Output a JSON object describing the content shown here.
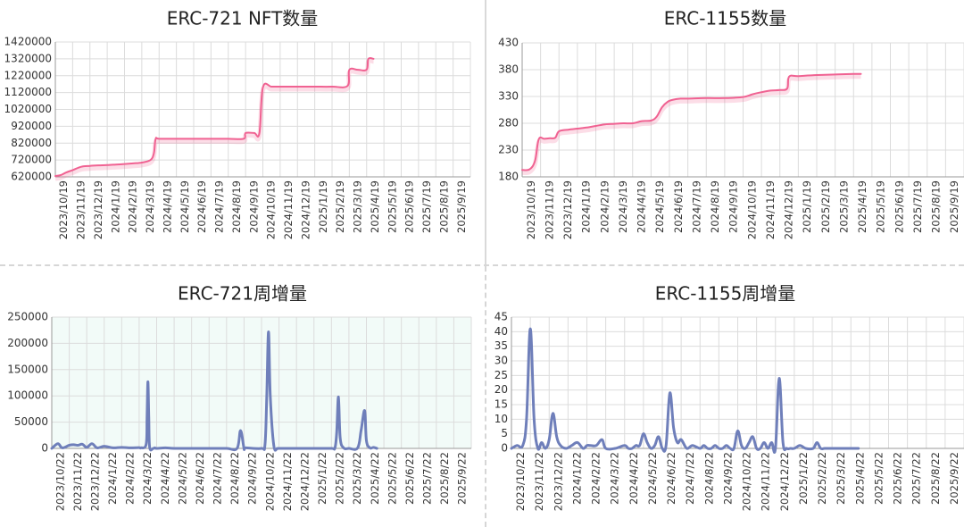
{
  "chart_data": [
    {
      "type": "line",
      "title": "ERC-721 NFT数量",
      "ylim": [
        620000,
        1420000
      ],
      "yticks": [
        "1420000",
        "1320000",
        "1220000",
        "1120000",
        "1020000",
        "920000",
        "820000",
        "720000",
        "620000"
      ],
      "xticks": [
        "2023/10/19",
        "2023/11/19",
        "2023/12/19",
        "2024/1/19",
        "2024/2/19",
        "2024/3/19",
        "2024/4/19",
        "2024/5/19",
        "2024/6/19",
        "2024/7/19",
        "2024/8/19",
        "2024/9/19",
        "2024/10/19",
        "2024/11/19",
        "2024/12/19",
        "2025/1/19",
        "2025/2/19",
        "2025/3/19",
        "2025/4/19",
        "2025/5/19",
        "2025/6/19",
        "2025/7/19",
        "2025/8/19",
        "2025/9/19"
      ],
      "color": "#f06292",
      "background": "#ffffff",
      "grid": true,
      "series": [
        {
          "x": [
            0,
            0.3,
            0.6,
            1.0,
            1.5,
            2.0,
            2.5,
            3.0,
            3.5,
            4.0,
            4.5,
            5.0,
            5.5,
            5.7,
            5.8,
            6,
            7,
            8,
            9,
            10,
            10.9,
            11.0,
            11.5,
            11.8,
            12.0,
            12.5,
            13,
            14,
            15,
            16,
            16.9,
            17.0,
            17.5,
            18.0,
            18.1,
            18.4
          ],
          "y": [
            625000,
            630000,
            645000,
            660000,
            680000,
            685000,
            688000,
            690000,
            693000,
            696000,
            700000,
            705000,
            720000,
            760000,
            845000,
            846000,
            846000,
            846000,
            846000,
            846000,
            846000,
            880000,
            880000,
            880000,
            1150000,
            1155000,
            1155000,
            1155000,
            1155000,
            1155000,
            1160000,
            1255000,
            1255000,
            1256000,
            1320000,
            1320000
          ]
        }
      ]
    },
    {
      "type": "line",
      "title": "ERC-1155数量",
      "ylim": [
        180,
        430
      ],
      "yticks": [
        "430",
        "380",
        "330",
        "280",
        "230",
        "180"
      ],
      "xticks": [
        "2023/10/19",
        "2023/11/19",
        "2023/12/19",
        "2024/1/19",
        "2024/2/19",
        "2024/3/19",
        "2024/4/19",
        "2024/5/19",
        "2024/6/19",
        "2024/7/19",
        "2024/8/19",
        "2024/9/19",
        "2024/10/19",
        "2024/11/19",
        "2024/12/19",
        "2025/1/19",
        "2025/2/19",
        "2025/3/19",
        "2025/4/19",
        "2025/5/19",
        "2025/6/19",
        "2025/7/19",
        "2025/8/19",
        "2025/9/19"
      ],
      "color": "#f06292",
      "background": "#ffffff",
      "grid": true,
      "series": [
        {
          "x": [
            0,
            0.4,
            0.7,
            0.9,
            1.2,
            1.5,
            1.8,
            2.0,
            2.5,
            3,
            3.5,
            4,
            4.5,
            5,
            5.5,
            6,
            6.5,
            7.0,
            7.3,
            7.6,
            7.9,
            8.2,
            8.6,
            9,
            10,
            11,
            12,
            12.5,
            13,
            13.5,
            14,
            14.4,
            14.5,
            15,
            16,
            17,
            18,
            18.4
          ],
          "y": [
            193,
            194,
            210,
            250,
            251,
            252,
            253,
            265,
            268,
            270,
            272,
            275,
            278,
            279,
            280,
            280,
            284,
            285,
            292,
            310,
            320,
            324,
            326,
            326,
            327,
            327,
            329,
            334,
            338,
            341,
            342,
            345,
            367,
            368,
            370,
            371,
            372,
            372
          ]
        }
      ]
    },
    {
      "type": "line",
      "title": "ERC-721周增量",
      "ylim": [
        0,
        250000
      ],
      "yticks": [
        "250000",
        "200000",
        "150000",
        "100000",
        "50000",
        "0"
      ],
      "xticks": [
        "2023/10/22",
        "2023/11/22",
        "2023/12/22",
        "2024/1/22",
        "2024/2/22",
        "2024/3/22",
        "2024/4/22",
        "2024/5/22",
        "2024/6/22",
        "2024/7/22",
        "2024/8/22",
        "2024/9/22",
        "2024/10/22",
        "2024/11/22",
        "2024/12/22",
        "2025/1/22",
        "2025/2/22",
        "2025/3/22",
        "2025/4/22",
        "2025/5/22",
        "2025/6/22",
        "2025/7/22",
        "2025/8/22",
        "2025/9/22"
      ],
      "color": "#6f7fba",
      "background": "#f2fbf8",
      "grid": true,
      "series": [
        {
          "x": [
            0,
            0.35,
            0.6,
            1.0,
            1.25,
            1.5,
            1.75,
            2.0,
            2.3,
            2.6,
            3.0,
            3.5,
            4.0,
            4.5,
            5.0,
            5.1,
            5.4,
            5.45,
            5.5,
            5.55,
            5.6,
            5.8,
            5.9,
            6.0,
            6.5,
            7,
            8,
            9,
            10,
            10.6,
            10.8,
            11.0,
            11.1,
            12.0,
            12.2,
            12.3,
            12.4,
            12.5,
            12.7,
            12.9,
            13,
            14,
            15,
            16,
            16.2,
            16.3,
            16.4,
            16.5,
            16.7,
            17,
            17.5,
            17.7,
            17.9,
            18.0,
            18.2,
            18.4,
            18.6
          ],
          "y": [
            0,
            9000,
            1000,
            6000,
            7000,
            6000,
            8000,
            2000,
            9000,
            1000,
            4000,
            1000,
            2000,
            1000,
            1500,
            1000,
            8000,
            60000,
            127000,
            60000,
            2000,
            0,
            1000,
            0,
            1000,
            0,
            0,
            0,
            0,
            0,
            34000,
            0,
            1000,
            0,
            8000,
            100000,
            222000,
            100000,
            6000,
            0,
            0,
            0,
            0,
            0,
            1000,
            30000,
            98000,
            20000,
            1000,
            0,
            1000,
            35000,
            72000,
            15000,
            1000,
            2000,
            0
          ]
        }
      ]
    },
    {
      "type": "line",
      "title": "ERC-1155周增量",
      "ylim": [
        0,
        45
      ],
      "yticks": [
        "45",
        "40",
        "35",
        "30",
        "25",
        "20",
        "15",
        "10",
        "5",
        "0"
      ],
      "xticks": [
        "2023/10/22",
        "2023/11/22",
        "2023/12/22",
        "2024/1/22",
        "2024/2/22",
        "2024/3/22",
        "2024/4/22",
        "2024/5/22",
        "2024/6/22",
        "2024/7/22",
        "2024/8/22",
        "2024/9/22",
        "2024/10/22",
        "2024/11/22",
        "2024/12/22",
        "2025/1/22",
        "2025/2/22",
        "2025/3/22",
        "2025/4/22",
        "2025/5/22",
        "2025/6/22",
        "2025/7/22",
        "2025/8/22",
        "2025/9/22"
      ],
      "color": "#6f7fba",
      "background": "#ffffff",
      "grid": true,
      "series": [
        {
          "x": [
            0,
            0.3,
            0.6,
            0.8,
            1.0,
            1.2,
            1.4,
            1.6,
            1.8,
            2.0,
            2.2,
            2.4,
            2.6,
            2.9,
            3.2,
            3.5,
            3.8,
            4.0,
            4.2,
            4.5,
            4.8,
            5.0,
            5.5,
            6.0,
            6.2,
            6.4,
            6.6,
            6.8,
            7.0,
            7.2,
            7.4,
            7.6,
            7.8,
            8.0,
            8.2,
            8.4,
            8.6,
            8.8,
            9.0,
            9.3,
            9.6,
            10,
            10.2,
            10.4,
            10.6,
            10.8,
            11.0,
            11.2,
            11.4,
            11.6,
            11.8,
            12.0,
            12.2,
            12.4,
            12.6,
            12.8,
            13.0,
            13.2,
            13.4,
            13.6,
            13.8,
            14.0,
            14.2,
            14.4,
            14.6,
            14.8,
            15,
            15.3,
            15.6,
            16,
            16.2,
            16.4,
            16.6,
            16.8,
            17.0,
            17.4,
            17.8,
            18.0,
            18.4
          ],
          "y": [
            0,
            1,
            1,
            10,
            41,
            10,
            0,
            2,
            0,
            3,
            12,
            4,
            1,
            0,
            1,
            2,
            0,
            1,
            1,
            1,
            3,
            0,
            0,
            1,
            0,
            0,
            1,
            1,
            5,
            2,
            0,
            1,
            4,
            0,
            1,
            19,
            7,
            2,
            3,
            0,
            1,
            0,
            1,
            0,
            0,
            1,
            0,
            0,
            1,
            0,
            0,
            6,
            1,
            0,
            2,
            4,
            0,
            0,
            2,
            0,
            2,
            0,
            24,
            2,
            0,
            0,
            0,
            1,
            0,
            0,
            2,
            0,
            0,
            0,
            0,
            0,
            0,
            0,
            0
          ]
        }
      ]
    }
  ]
}
